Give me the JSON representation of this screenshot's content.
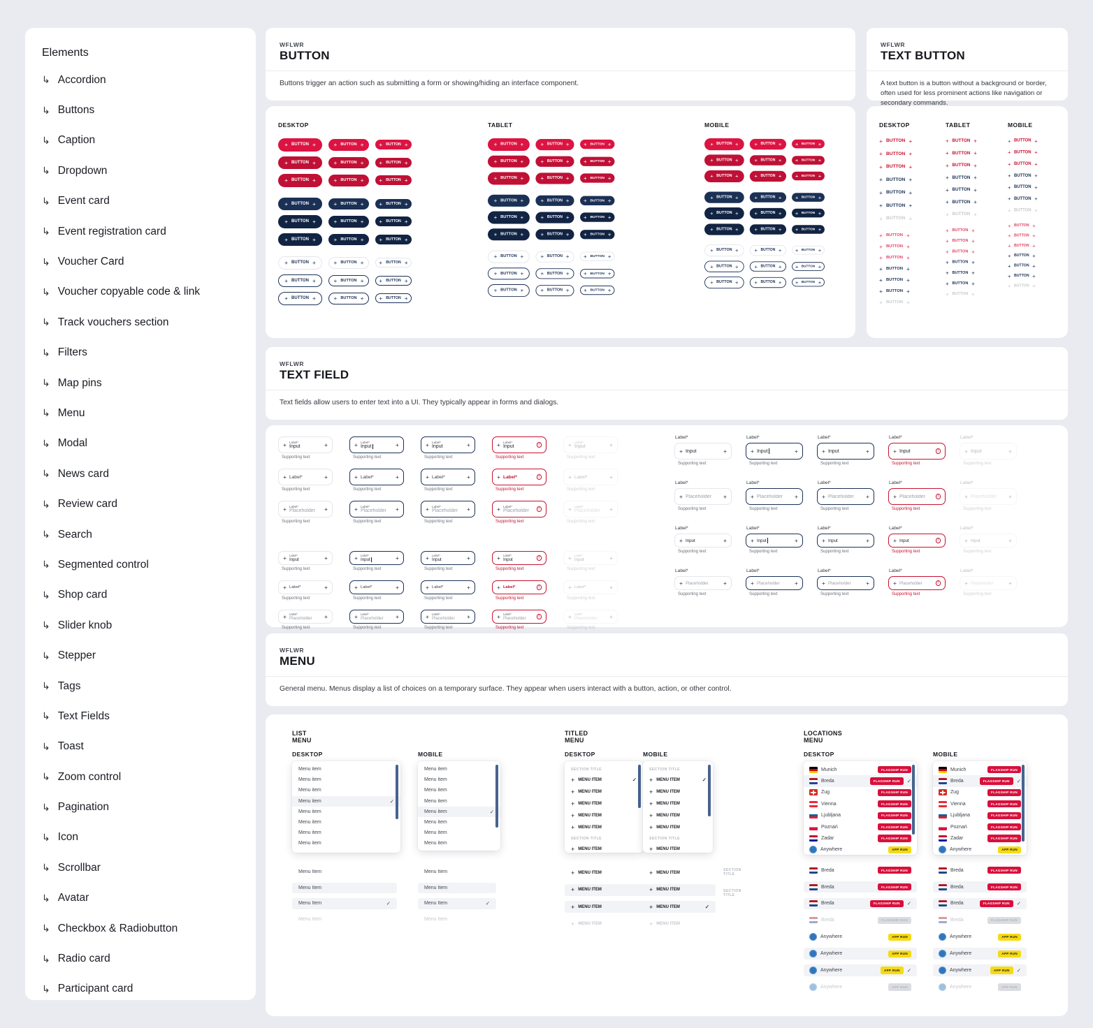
{
  "sidebar": {
    "title": "Elements",
    "items": [
      "Accordion",
      "Buttons",
      "Caption",
      "Dropdown",
      "Event card",
      "Event registration card",
      "Voucher Card",
      "Voucher copyable code & link",
      "Track vouchers section",
      "Filters",
      "Map pins",
      "Menu",
      "Modal",
      "News card",
      "Review card",
      "Search",
      "Segmented control",
      "Shop card",
      "Slider knob",
      "Stepper",
      "Tags",
      "Text Fields",
      "Toast",
      "Zoom control",
      "Pagination",
      "Icon",
      "Scrollbar",
      "Avatar",
      "Checkbox & Radiobutton",
      "Radio card",
      "Participant card"
    ]
  },
  "sections": {
    "button": {
      "eyebrow": "WFLWR",
      "title": "BUTTON",
      "description": "Buttons trigger an action such as submitting a form or showing/hiding an interface component.",
      "devices": [
        "DESKTOP",
        "TABLET",
        "MOBILE"
      ],
      "label": "BUTTON",
      "plus": "+",
      "sizes": [
        "lg",
        "md",
        "sm"
      ],
      "variants": [
        "red-bright",
        "red-dark",
        "red-dark",
        "navy",
        "navy-dark",
        "navy-dark",
        "outline-faint",
        "outline",
        "outline"
      ]
    },
    "text_button": {
      "eyebrow": "WFLWR",
      "title": "TEXT BUTTON",
      "description": "A text button is a button without a background or border, often used for less prominent actions like navigation or secondary commands.",
      "devices": [
        "DESKTOP",
        "TABLET",
        "MOBILE"
      ],
      "label": "BUTTON",
      "plus": "+",
      "groups": [
        [
          "t-red",
          "t-red",
          "t-red",
          "t-navy",
          "t-navy",
          "t-navy",
          "t-muted"
        ],
        [
          "t-pink",
          "t-pink",
          "t-pink",
          "t-navy",
          "t-navy",
          "t-navy",
          "t-muted"
        ]
      ]
    },
    "text_field": {
      "eyebrow": "WFLWR",
      "title": "TEXT FIELD",
      "description": "Text fields allow users to enter text into a UI. They typically appear in forms and dialogs.",
      "label": "Label*",
      "input": "Input",
      "placeholder": "Placeholder",
      "supporting": "Supporting text",
      "plus": "+",
      "error_glyph": "!",
      "states": [
        "default",
        "focus",
        "hover",
        "error",
        "disabled"
      ],
      "inside_rows": [
        "input",
        "label",
        "placeholder"
      ],
      "outside_rows": [
        "input",
        "placeholder"
      ]
    },
    "menu": {
      "eyebrow": "WFLWR",
      "title": "MENU",
      "description": "General menu. Menus display a list of choices on a temporary surface. They appear when users interact with a button, action, or other control.",
      "list": {
        "title": "LIST MENU",
        "devices": [
          "DESKTOP",
          "MOBILE"
        ],
        "item": "Menu item",
        "state_item": "Menu Item",
        "row_count": 8,
        "selected_index": [
          3,
          4
        ],
        "states": [
          "default",
          "hover",
          "selected",
          "disabled"
        ]
      },
      "titled": {
        "title": "TITLED MENU",
        "devices": [
          "DESKTOP",
          "MOBILE"
        ],
        "section_title": "SECTION TITLE",
        "item": "MENU ITEM",
        "plus": "+",
        "structure": [
          "title",
          "item-check",
          "item",
          "item",
          "item",
          "item",
          "title",
          "item"
        ],
        "states": [
          "default",
          "hover",
          "selected",
          "disabled"
        ]
      },
      "locations": {
        "title": "LOCATIONS MENU",
        "devices": [
          "DESKTOP",
          "MOBILE"
        ],
        "rows": [
          {
            "city": "Munich",
            "flag": "de",
            "badge": "FLAGSHIP RUN",
            "badge_type": "red",
            "selected": false
          },
          {
            "city": "Breda",
            "flag": "nl",
            "badge": "FLAGSHIP RUN",
            "badge_type": "red",
            "selected": true
          },
          {
            "city": "Zug",
            "flag": "ch",
            "badge": "FLAGSHIP RUN",
            "badge_type": "red",
            "selected": false
          },
          {
            "city": "Vienna",
            "flag": "at",
            "badge": "FLAGSHIP RUN",
            "badge_type": "red",
            "selected": false
          },
          {
            "city": "Ljubljana",
            "flag": "si",
            "badge": "FLAGSHIP RUN",
            "badge_type": "red",
            "selected": false
          },
          {
            "city": "Poznań",
            "flag": "pl",
            "badge": "FLAGSHIP RUN",
            "badge_type": "red",
            "selected": false
          },
          {
            "city": "Zadar",
            "flag": "hr",
            "badge": "FLAGSHIP RUN",
            "badge_type": "red",
            "selected": false
          },
          {
            "city": "Anywhere",
            "flag": "globe",
            "badge": "APP RUN",
            "badge_type": "yellow",
            "selected": false
          }
        ],
        "state_cities": [
          {
            "city": "Breda",
            "flag": "nl",
            "badge": "FLAGSHIP RUN",
            "badge_type": "red"
          },
          {
            "city": "Anywhere",
            "flag": "globe",
            "badge": "APP RUN",
            "badge_type": "yellow"
          }
        ],
        "states": [
          "default",
          "hover",
          "selected",
          "disabled"
        ]
      }
    }
  },
  "colors": {
    "page_bg": "#eaebf1",
    "accent_red_bright": "#dc1442",
    "accent_red_dark": "#c01036",
    "brand_red": "#c8102e",
    "navy": "#1b3055",
    "badge_red": "#d8103c",
    "badge_yellow": "#f6da12",
    "scrollbar": "#47648f",
    "row_highlight": "#f2f3f6"
  }
}
